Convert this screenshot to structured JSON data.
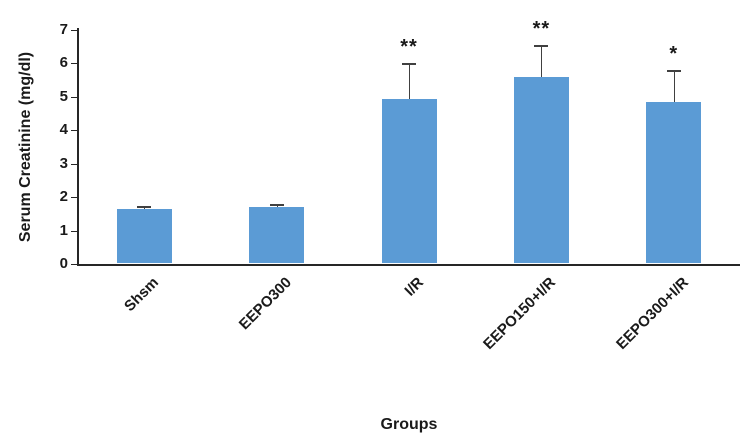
{
  "chart_data": {
    "type": "bar",
    "title": "",
    "xlabel": "Groups",
    "ylabel": "Serum Creatinine (mg/dl)",
    "categories": [
      "Shsm",
      "EEPO300",
      "I/R",
      "EEPO150+I/R",
      "EEPO300+I/R"
    ],
    "values": [
      1.65,
      1.7,
      4.95,
      5.6,
      4.85
    ],
    "error_bars": [
      0.1,
      0.1,
      1.05,
      0.95,
      0.95
    ],
    "annotations": [
      "",
      "",
      "**",
      "**",
      "*"
    ],
    "ylim": [
      0,
      7
    ],
    "yticks": [
      0,
      1,
      2,
      3,
      4,
      5,
      6,
      7
    ],
    "grid": false,
    "legend": false,
    "bar_color": "#5B9BD5",
    "axis_color": "#262626",
    "error_color": "#404040",
    "text_color": "#1a1a1a"
  }
}
